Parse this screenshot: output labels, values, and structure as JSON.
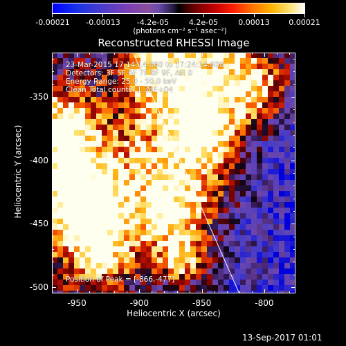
{
  "colorbar": {
    "ticks": [
      "-0.00021",
      "-0.00013",
      "-4.2e-05",
      "4.2e-05",
      "0.00013",
      "0.00021"
    ],
    "units": "(photons cm⁻² s⁻¹ asec⁻²)"
  },
  "title": "Reconstructed RHESSI Image",
  "info": {
    "line1": "23-Mar-2015 17:14:14.000 to 17:24:14.000",
    "line2": "Detectors: 3F 5F 6F 7F 8F 9F, Att 0",
    "line3": "Energy Range: 25.0 - 50.0 keV",
    "line4": "Clean    Total counts: 1.33E+04",
    "peak": "Position of Peak = [-866,-477]"
  },
  "timestamp": "13-Sep-2017 01:01",
  "chart_data": {
    "type": "heatmap",
    "title": "Reconstructed RHESSI Image",
    "xlabel": "Heliocentric X (arcsec)",
    "ylabel": "Heliocentric Y (arcsec)",
    "xlim": [
      -970,
      -775
    ],
    "ylim": [
      -505,
      -315
    ],
    "x_ticks": [
      "-950",
      "-900",
      "-850",
      "-800"
    ],
    "y_ticks": [
      "-350",
      "-400",
      "-450",
      "-500"
    ],
    "x_tick_values": [
      -950,
      -900,
      -850,
      -800
    ],
    "y_tick_values": [
      -350,
      -400,
      -450,
      -500
    ],
    "colorbar_range": [
      -0.00021,
      0.00021
    ],
    "colormap": "blue-purple-black-red-yellow-white",
    "limb_line": [
      [
        -905,
        -315
      ],
      [
        -820,
        -505
      ]
    ],
    "peak_position": [
      -866,
      -477
    ]
  }
}
